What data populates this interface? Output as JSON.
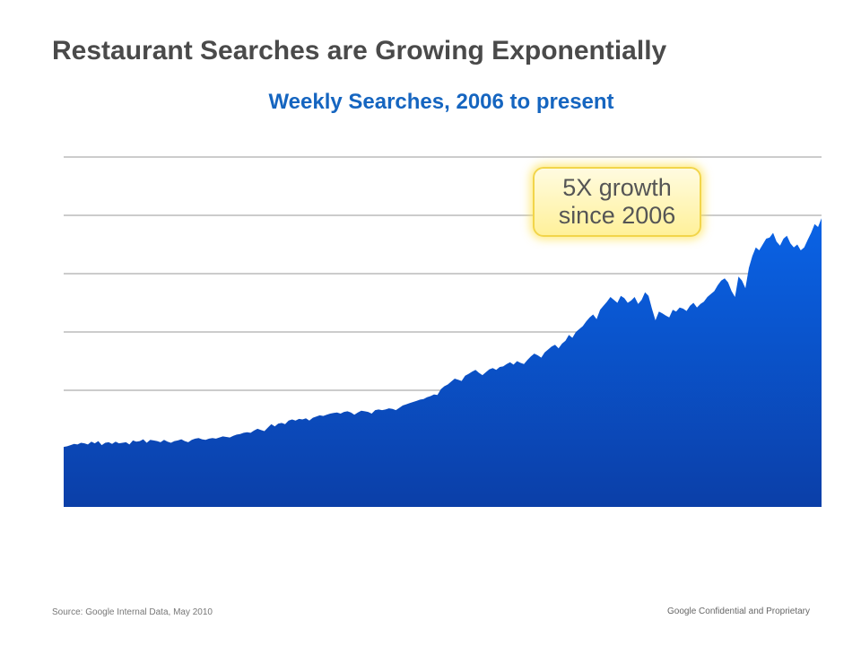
{
  "slide": {
    "title": "Restaurant Searches are Growing Exponentially",
    "source_note": "Source: Google Internal Data, May 2010",
    "confidentiality": "Google Confidential and Proprietary"
  },
  "callout": {
    "line1": "5X growth",
    "line2": "since 2006"
  },
  "colors": {
    "area_top": "#0a63e6",
    "area_bottom": "#0b3fa8",
    "subtitle": "#1565c0",
    "gridline": "#9a9a9a"
  },
  "chart_data": {
    "type": "area",
    "title": "Weekly Searches, 2006 to present",
    "xlabel": "",
    "ylabel": "",
    "x_range": [
      0,
      227
    ],
    "ylim": [
      0,
      6
    ],
    "gridlines": [
      1,
      2,
      3,
      4,
      5,
      6
    ],
    "grid": true,
    "legend": "none",
    "tick_labels_shown": false,
    "values": [
      1.03,
      1.04,
      1.06,
      1.08,
      1.07,
      1.1,
      1.09,
      1.07,
      1.12,
      1.09,
      1.13,
      1.06,
      1.1,
      1.11,
      1.08,
      1.12,
      1.09,
      1.1,
      1.11,
      1.07,
      1.14,
      1.12,
      1.13,
      1.16,
      1.1,
      1.15,
      1.14,
      1.13,
      1.11,
      1.15,
      1.12,
      1.1,
      1.13,
      1.14,
      1.16,
      1.13,
      1.11,
      1.15,
      1.17,
      1.18,
      1.16,
      1.15,
      1.17,
      1.18,
      1.17,
      1.19,
      1.21,
      1.2,
      1.19,
      1.22,
      1.24,
      1.25,
      1.27,
      1.28,
      1.27,
      1.31,
      1.34,
      1.32,
      1.3,
      1.36,
      1.42,
      1.38,
      1.43,
      1.44,
      1.42,
      1.48,
      1.5,
      1.48,
      1.51,
      1.5,
      1.52,
      1.48,
      1.53,
      1.55,
      1.57,
      1.56,
      1.58,
      1.6,
      1.61,
      1.62,
      1.6,
      1.63,
      1.64,
      1.62,
      1.58,
      1.62,
      1.65,
      1.64,
      1.63,
      1.6,
      1.66,
      1.67,
      1.66,
      1.67,
      1.69,
      1.68,
      1.66,
      1.7,
      1.74,
      1.76,
      1.78,
      1.8,
      1.82,
      1.84,
      1.85,
      1.88,
      1.9,
      1.93,
      1.92,
      2.02,
      2.07,
      2.1,
      2.15,
      2.2,
      2.18,
      2.16,
      2.25,
      2.28,
      2.32,
      2.35,
      2.3,
      2.26,
      2.31,
      2.36,
      2.38,
      2.35,
      2.4,
      2.41,
      2.45,
      2.48,
      2.44,
      2.5,
      2.47,
      2.45,
      2.52,
      2.58,
      2.63,
      2.6,
      2.56,
      2.65,
      2.7,
      2.75,
      2.78,
      2.72,
      2.8,
      2.85,
      2.95,
      2.9,
      3.0,
      3.05,
      3.1,
      3.18,
      3.25,
      3.3,
      3.22,
      3.38,
      3.45,
      3.52,
      3.6,
      3.55,
      3.5,
      3.62,
      3.58,
      3.5,
      3.54,
      3.6,
      3.48,
      3.55,
      3.68,
      3.62,
      3.4,
      3.2,
      3.35,
      3.32,
      3.28,
      3.25,
      3.38,
      3.35,
      3.42,
      3.4,
      3.36,
      3.45,
      3.5,
      3.42,
      3.48,
      3.52,
      3.6,
      3.65,
      3.7,
      3.8,
      3.88,
      3.92,
      3.85,
      3.7,
      3.6,
      3.95,
      3.88,
      3.75,
      4.1,
      4.3,
      4.45,
      4.4,
      4.5,
      4.6,
      4.62,
      4.7,
      4.55,
      4.48,
      4.6,
      4.65,
      4.52,
      4.45,
      4.5,
      4.4,
      4.45,
      4.58,
      4.7,
      4.85,
      4.8,
      4.95
    ]
  }
}
